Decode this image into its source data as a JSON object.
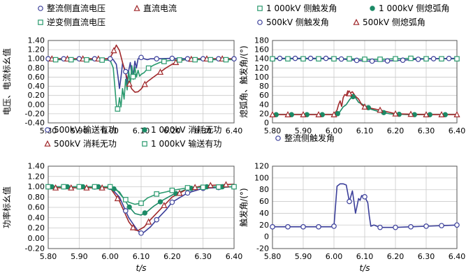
{
  "chart_data": [
    {
      "type": "line",
      "ylabel": "电压、电流标幺值",
      "xlabel": "",
      "xlim": [
        5.8,
        6.4
      ],
      "ylim": [
        -0.4,
        1.4
      ],
      "x_ticks": [
        "5.80",
        "5.90",
        "6.00",
        "6.10",
        "6.20",
        "6.30",
        "6.40"
      ],
      "y_ticks": [
        "1.40",
        "1.20",
        "1.00",
        "0.80",
        "0.60",
        "0.40",
        "0.20",
        "0.00",
        "-0.20",
        "-0.40"
      ],
      "legend_position": "top",
      "grid": true,
      "series": [
        {
          "name": "整流侧直流电压",
          "color": "#3b3f9a",
          "marker": "circle-open",
          "x": [
            5.8,
            5.9,
            6.0,
            6.01,
            6.02,
            6.025,
            6.03,
            6.035,
            6.04,
            6.05,
            6.055,
            6.06,
            6.065,
            6.07,
            6.075,
            6.08,
            6.085,
            6.09,
            6.1,
            6.11,
            6.12,
            6.13,
            6.15,
            6.2,
            6.25,
            6.3,
            6.4
          ],
          "y": [
            1.0,
            1.0,
            1.0,
            0.98,
            0.88,
            0.62,
            0.35,
            0.6,
            0.9,
            0.72,
            0.42,
            0.75,
            0.92,
            0.62,
            0.68,
            0.95,
            0.8,
            1.0,
            1.03,
            1.0,
            0.98,
            1.0,
            1.0,
            1.01,
            1.0,
            1.0,
            1.0
          ]
        },
        {
          "name": "直流电流",
          "color": "#a0282b",
          "marker": "triangle-open",
          "x": [
            5.8,
            5.9,
            5.99,
            6.0,
            6.01,
            6.02,
            6.03,
            6.04,
            6.05,
            6.06,
            6.07,
            6.08,
            6.09,
            6.1,
            6.11,
            6.12,
            6.14,
            6.16,
            6.18,
            6.2,
            6.22,
            6.25,
            6.3,
            6.4
          ],
          "y": [
            1.0,
            1.0,
            1.0,
            1.02,
            1.15,
            1.3,
            1.18,
            0.92,
            0.68,
            0.48,
            0.34,
            0.27,
            0.28,
            0.34,
            0.43,
            0.5,
            0.6,
            0.7,
            0.8,
            0.88,
            0.95,
            0.99,
            1.0,
            1.0
          ]
        },
        {
          "name": "逆变侧直流电压",
          "color": "#2a9a6e",
          "marker": "square-open",
          "x": [
            5.8,
            5.9,
            6.0,
            6.01,
            6.015,
            6.02,
            6.025,
            6.03,
            6.035,
            6.04,
            6.045,
            6.05,
            6.055,
            6.06,
            6.065,
            6.07,
            6.075,
            6.08,
            6.085,
            6.09,
            6.095,
            6.1,
            6.11,
            6.12,
            6.14,
            6.16,
            6.18,
            6.2,
            6.25,
            6.3,
            6.4
          ],
          "y": [
            0.98,
            0.98,
            0.97,
            0.8,
            0.4,
            0.0,
            -0.12,
            0.15,
            -0.05,
            0.35,
            0.12,
            0.55,
            0.32,
            0.72,
            0.45,
            0.85,
            0.55,
            0.82,
            0.6,
            0.75,
            0.62,
            0.66,
            0.7,
            0.78,
            0.86,
            0.92,
            0.95,
            0.97,
            0.98,
            0.98,
            0.98
          ]
        }
      ]
    },
    {
      "type": "line",
      "ylabel": "熄弧角、触发角/(°)",
      "xlabel": "",
      "xlim": [
        5.8,
        6.4
      ],
      "ylim": [
        0,
        180
      ],
      "x_ticks": [
        "5.80",
        "5.90",
        "6.00",
        "6.10",
        "6.20",
        "6.30",
        "6.40"
      ],
      "y_ticks": [
        "180",
        "160",
        "140",
        "120",
        "100",
        "80",
        "60",
        "40",
        "20",
        "0"
      ],
      "legend_position": "top",
      "grid": true,
      "series": [
        {
          "name": "1 000kV 侧触发角",
          "color": "#2a9a6e",
          "marker": "square-open",
          "x": [
            5.8,
            5.9,
            6.0,
            6.05,
            6.1,
            6.15,
            6.2,
            6.25,
            6.3,
            6.4
          ],
          "y": [
            140,
            140,
            140,
            140,
            139,
            139,
            140,
            141,
            140,
            140
          ]
        },
        {
          "name": "1 000kV 侧熄弧角",
          "color": "#1c8a66",
          "marker": "circle-filled",
          "x": [
            5.8,
            5.9,
            6.0,
            6.01,
            6.02,
            6.03,
            6.04,
            6.05,
            6.06,
            6.07,
            6.08,
            6.1,
            6.12,
            6.15,
            6.18,
            6.2,
            6.25,
            6.3,
            6.4
          ],
          "y": [
            18,
            18,
            18,
            19,
            25,
            35,
            40,
            50,
            58,
            55,
            45,
            38,
            30,
            24,
            20,
            19,
            18,
            18,
            18
          ]
        },
        {
          "name": "500kV 侧触发角",
          "color": "#3b3f9a",
          "marker": "circle-open",
          "x": [
            5.8,
            5.9,
            6.0,
            6.05,
            6.1,
            6.15,
            6.2,
            6.25,
            6.3,
            6.4
          ],
          "y": [
            141,
            141,
            141,
            138,
            135,
            135,
            136,
            138,
            140,
            141
          ]
        },
        {
          "name": "500kV 侧熄弧角",
          "color": "#a0282b",
          "marker": "triangle-open",
          "x": [
            5.8,
            5.9,
            6.0,
            6.01,
            6.015,
            6.02,
            6.025,
            6.03,
            6.035,
            6.04,
            6.045,
            6.05,
            6.06,
            6.07,
            6.08,
            6.09,
            6.1,
            6.12,
            6.15,
            6.2,
            6.3,
            6.4
          ],
          "y": [
            18,
            18,
            18,
            28,
            40,
            48,
            36,
            55,
            62,
            60,
            70,
            64,
            68,
            58,
            52,
            40,
            35,
            32,
            28,
            20,
            18,
            18
          ]
        }
      ]
    },
    {
      "type": "line",
      "ylabel": "功率标幺值",
      "xlabel": "t/s",
      "xlim": [
        5.8,
        6.4
      ],
      "ylim": [
        -0.2,
        1.4
      ],
      "x_ticks": [
        "5.80",
        "5.90",
        "6.00",
        "6.10",
        "6.20",
        "6.30",
        "6.40"
      ],
      "y_ticks": [
        "1.40",
        "1.20",
        "1.00",
        "0.80",
        "0.60",
        "0.40",
        "0.20",
        "0.00",
        "-0.20"
      ],
      "legend_position": "top",
      "grid": true,
      "series": [
        {
          "name": "500kV 输送有功",
          "color": "#3b3f9a",
          "marker": "circle-open",
          "x": [
            5.8,
            5.9,
            6.0,
            6.03,
            6.06,
            6.09,
            6.1,
            6.11,
            6.13,
            6.15,
            6.18,
            6.2,
            6.25,
            6.3,
            6.4
          ],
          "y": [
            1.0,
            1.0,
            0.99,
            0.8,
            0.4,
            0.14,
            0.1,
            0.12,
            0.22,
            0.36,
            0.55,
            0.7,
            0.88,
            0.97,
            1.0
          ]
        },
        {
          "name": "1 000kV 消耗无功",
          "color": "#1c8a66",
          "marker": "circle-filled",
          "x": [
            5.8,
            5.9,
            6.0,
            6.03,
            6.06,
            6.08,
            6.1,
            6.12,
            6.14,
            6.17,
            6.2,
            6.25,
            6.3,
            6.4
          ],
          "y": [
            1.0,
            1.0,
            1.0,
            0.9,
            0.62,
            0.48,
            0.45,
            0.52,
            0.62,
            0.74,
            0.84,
            0.96,
            1.0,
            1.0
          ]
        },
        {
          "name": "500kV 消耗无功",
          "color": "#a0282b",
          "marker": "triangle-open",
          "x": [
            5.8,
            5.9,
            6.0,
            6.03,
            6.06,
            6.08,
            6.09,
            6.11,
            6.13,
            6.16,
            6.2,
            6.25,
            6.3,
            6.4
          ],
          "y": [
            0.98,
            0.98,
            0.98,
            0.72,
            0.32,
            0.16,
            0.15,
            0.22,
            0.36,
            0.55,
            0.8,
            0.96,
            1.02,
            1.05
          ]
        },
        {
          "name": "1 000kV 输送有功",
          "color": "#2a9a6e",
          "marker": "square-open",
          "x": [
            5.8,
            5.9,
            6.0,
            6.02,
            6.04,
            6.06,
            6.08,
            6.1,
            6.12,
            6.15,
            6.18,
            6.2,
            6.25,
            6.3,
            6.4
          ],
          "y": [
            1.0,
            1.0,
            1.0,
            0.95,
            0.8,
            0.7,
            0.66,
            0.68,
            0.78,
            0.86,
            0.9,
            0.93,
            0.98,
            0.99,
            1.0
          ]
        }
      ]
    },
    {
      "type": "line",
      "ylabel": "触发角/(°)",
      "xlabel": "t/s",
      "xlim": [
        5.8,
        6.4
      ],
      "ylim": [
        -20,
        120
      ],
      "x_ticks": [
        "5.80",
        "5.90",
        "6.00",
        "6.10",
        "6.20",
        "6.30",
        "6.40"
      ],
      "y_ticks": [
        "120",
        "100",
        "80",
        "60",
        "40",
        "20",
        "0",
        "-20"
      ],
      "legend_position": "top",
      "grid": true,
      "series": [
        {
          "name": "整流侧触发角",
          "color": "#3b3f9a",
          "marker": "circle-open",
          "x": [
            5.8,
            5.9,
            5.99,
            6.0,
            6.01,
            6.02,
            6.03,
            6.04,
            6.05,
            6.06,
            6.065,
            6.07,
            6.075,
            6.08,
            6.085,
            6.09,
            6.1,
            6.11,
            6.115,
            6.12,
            6.13,
            6.15,
            6.2,
            6.25,
            6.3,
            6.4
          ],
          "y": [
            17,
            17,
            17,
            18,
            86,
            90,
            90,
            88,
            60,
            78,
            60,
            40,
            52,
            65,
            62,
            70,
            68,
            58,
            35,
            18,
            20,
            16,
            16,
            17,
            18,
            20
          ]
        }
      ]
    }
  ]
}
